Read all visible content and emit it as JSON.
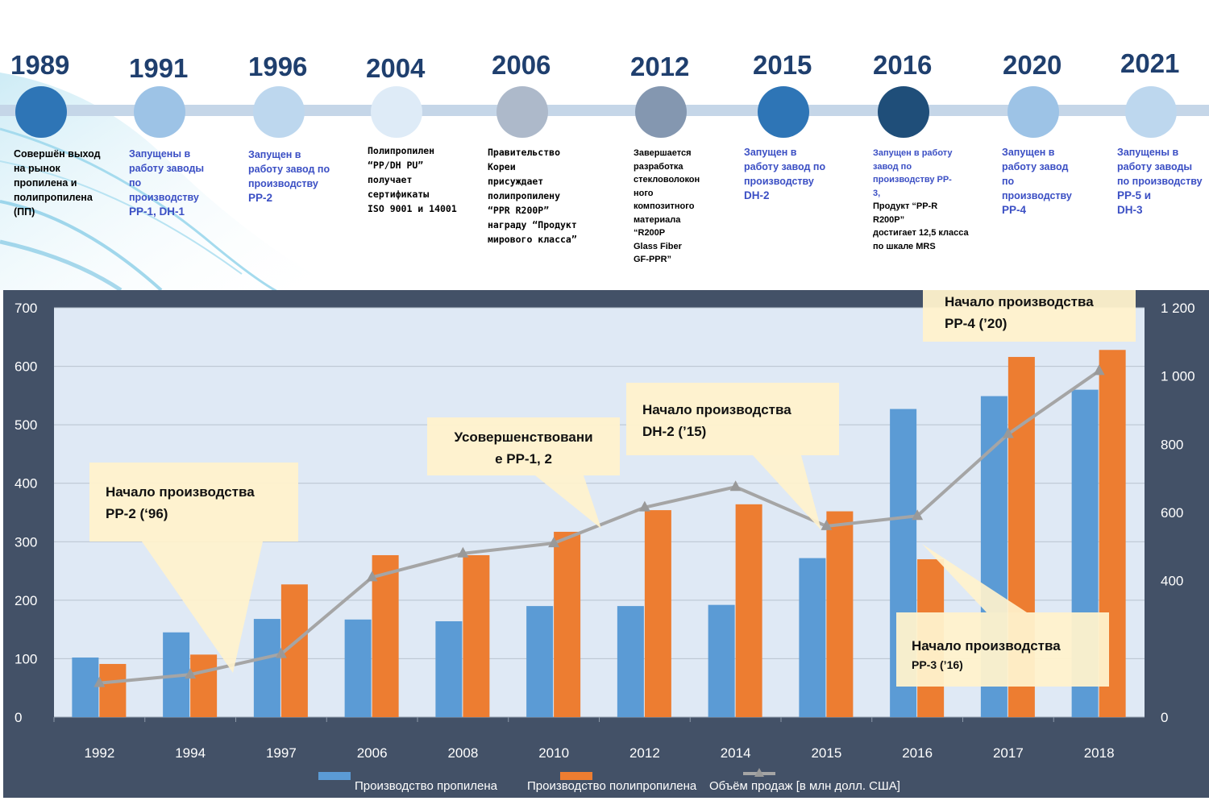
{
  "timeline": [
    {
      "year": "1989",
      "dot_color": "#2e75b6",
      "text": "Совершён выход\nна рынок\nпропилена и\nполипропилена\n(ПП)",
      "highlight": "",
      "style": "black"
    },
    {
      "year": "1991",
      "dot_color": "#9dc3e6",
      "text": "Запущены в\nработу заводы\nпо\nпроизводству",
      "highlight": "PP-1, DH-1",
      "style": "blue"
    },
    {
      "year": "1996",
      "dot_color": "#bdd7ee",
      "text": "Запущен в\nработу завод по\nпроизводству",
      "highlight": "PP-2",
      "style": "blue"
    },
    {
      "year": "2004",
      "dot_color": "#deebf7",
      "text": "Полипропилен\n“PP/DH PU”\nполучает\nсертификаты\nISO 9001 и 14001",
      "highlight": "",
      "style": "black"
    },
    {
      "year": "2006",
      "dot_color": "#adb9ca",
      "text": "Правительство\nКореи\nприсуждает\nполипропилену\n“PPR R200P”\nнаграду “Продукт\nмирового класса”",
      "highlight": "",
      "style": "black"
    },
    {
      "year": "2012",
      "dot_color": "#8497b0",
      "text": "Завершается\nразработка\nстекловолокон\nного\nкомпозитного\nматериала\n“R200P\nGlass Fiber\nGF-PPR”",
      "highlight": "",
      "style": "black"
    },
    {
      "year": "2015",
      "dot_color": "#2e75b6",
      "text": "Запущен в\nработу завод по\nпроизводству",
      "highlight": "DH-2",
      "style": "blue"
    },
    {
      "year": "2016",
      "dot_color": "#1f4e79",
      "text": "Запущен в работу\nзавод по\nпроизводству PP-\n3,",
      "extra": "Продукт “PP-R\nR200P”\nдостигает 12,5 класса\nпо шкале MRS",
      "highlight": "",
      "style": "blue"
    },
    {
      "year": "2020",
      "dot_color": "#9dc3e6",
      "text": "Запущен в\nработу завод\nпо\nпроизводству",
      "highlight": "PP-4",
      "style": "blue"
    },
    {
      "year": "2021",
      "dot_color": "#bdd7ee",
      "text": "Запущены в\nработу заводы\nпо производству",
      "highlight": "PP-5 и\nDH-3",
      "style": "blue"
    }
  ],
  "chart_data": {
    "type": "bar",
    "categories": [
      "1992",
      "1994",
      "1997",
      "2006",
      "2008",
      "2010",
      "2012",
      "2014",
      "2015",
      "2016",
      "2017",
      "2018"
    ],
    "series": [
      {
        "name": "Производство пропилена",
        "axis": "left",
        "color": "#5b9bd5",
        "values": [
          102,
          145,
          168,
          167,
          164,
          190,
          190,
          192,
          272,
          527,
          549,
          560
        ]
      },
      {
        "name": "Производство полипропилена",
        "axis": "left",
        "color": "#ed7d31",
        "values": [
          91,
          107,
          227,
          277,
          277,
          317,
          354,
          364,
          352,
          270,
          616,
          628
        ]
      },
      {
        "name": "Объём продаж [в млн долл. США]",
        "axis": "right",
        "type": "line",
        "color": "#a5a5a5",
        "values": [
          100,
          125,
          185,
          410,
          480,
          510,
          615,
          675,
          560,
          590,
          830,
          1015
        ]
      }
    ],
    "y_left": {
      "min": 0,
      "max": 700,
      "ticks": [
        "0",
        "100",
        "200",
        "300",
        "400",
        "500",
        "600",
        "700"
      ]
    },
    "y_right": {
      "min": 0,
      "max": 1200,
      "ticks": [
        "0",
        "",
        "400",
        "600",
        "800",
        "1 000",
        "1 200"
      ],
      "tick_values": [
        0,
        200,
        400,
        600,
        800,
        1000,
        1200
      ]
    },
    "legend_position": "bottom",
    "callouts": [
      {
        "lines": [
          "Начало производства",
          "PP-2 (‘96)"
        ]
      },
      {
        "lines": [
          "Усовершенствовани",
          "е PP-1, 2"
        ]
      },
      {
        "lines": [
          "Начало производства",
          "DH-2 (’15)"
        ]
      },
      {
        "lines": [
          "Начало производства",
          "PP-4 (’20)"
        ]
      },
      {
        "lines": [
          "Начало производства",
          "PP-3 (’16)"
        ]
      }
    ]
  }
}
